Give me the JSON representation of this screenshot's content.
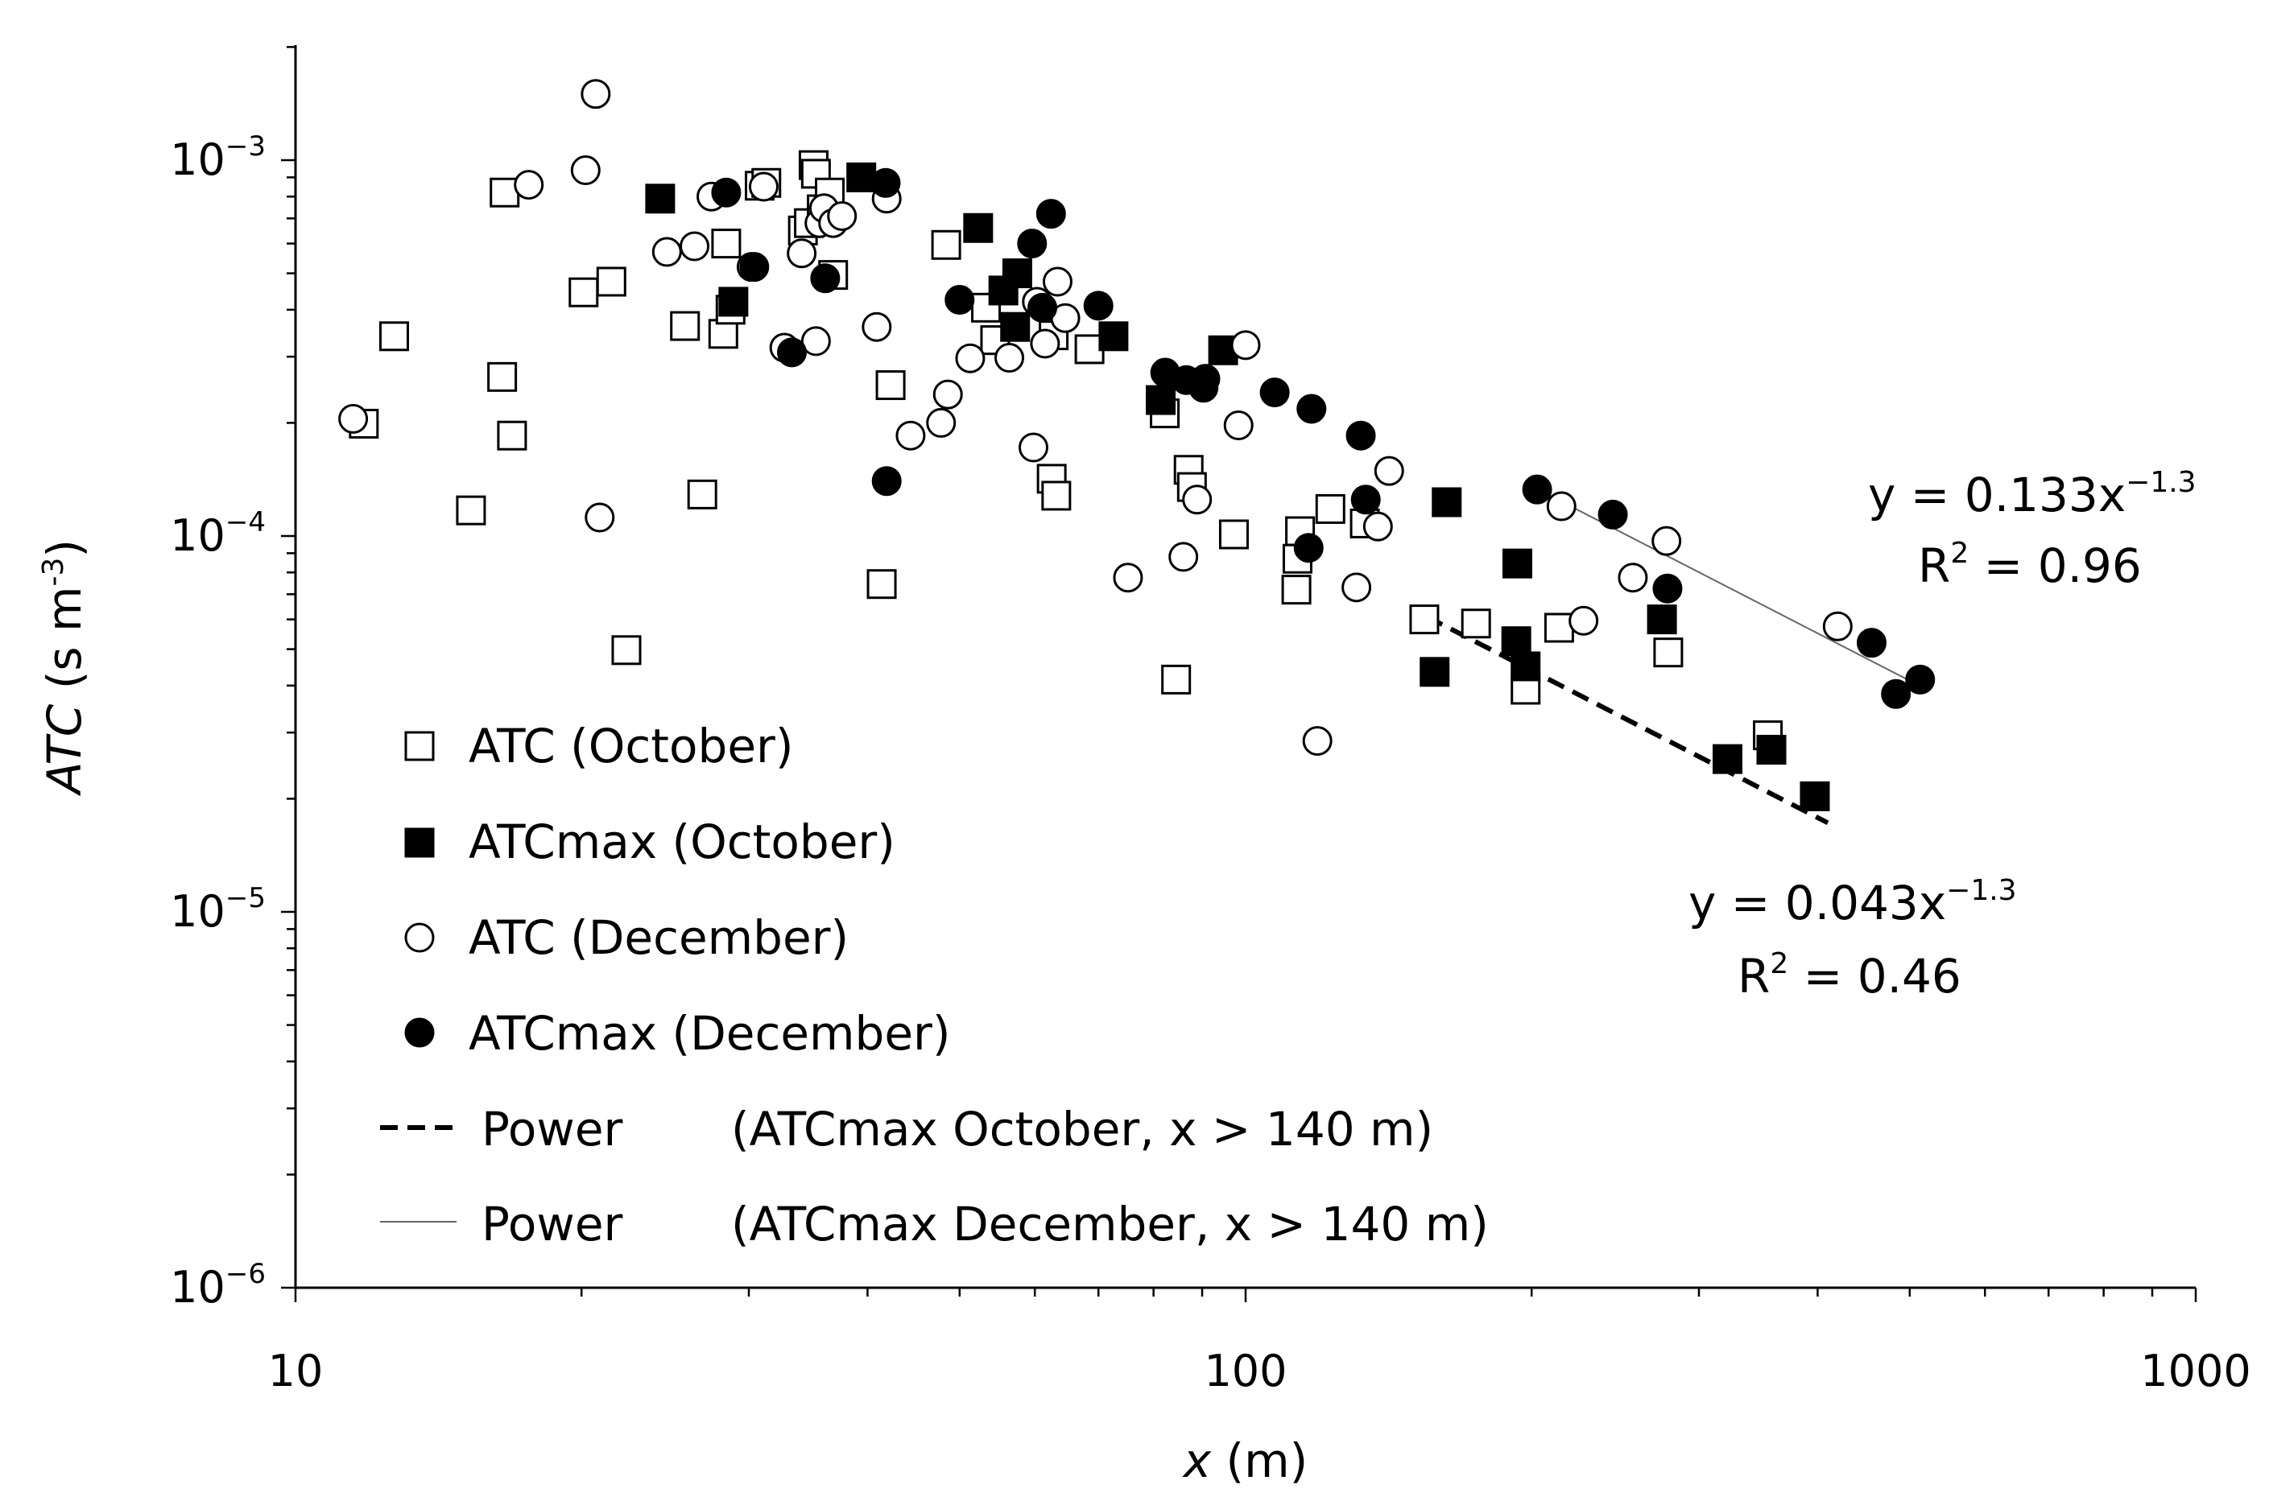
{
  "chart_data": {
    "type": "scatter",
    "x_scale": "log",
    "y_scale": "log",
    "xlim": [
      10,
      1000
    ],
    "ylim": [
      1e-06,
      0.002
    ],
    "xlabel": {
      "italic": "x",
      "rest": " (m)"
    },
    "ylabel": {
      "italic": "ATC",
      "rest": " (s m",
      "sup": "-3",
      "close": ")"
    },
    "x_ticks": [
      {
        "value": 10,
        "label": "10"
      },
      {
        "value": 100,
        "label": "100"
      },
      {
        "value": 1000,
        "label": "1000"
      }
    ],
    "y_ticks": [
      {
        "value": 1e-06,
        "base": "10",
        "exp": "−6"
      },
      {
        "value": 1e-05,
        "base": "10",
        "exp": "−5"
      },
      {
        "value": 0.0001,
        "base": "10",
        "exp": "−4"
      },
      {
        "value": 0.001,
        "base": "10",
        "exp": "−3"
      }
    ],
    "series": [
      {
        "name": "ATC (October)",
        "marker": "square-open",
        "points": [
          [
            11.8,
            0.000199
          ],
          [
            12.7,
            0.00034
          ],
          [
            15.3,
            0.000117
          ],
          [
            16.5,
            0.000265
          ],
          [
            16.6,
            0.00082
          ],
          [
            16.9,
            0.000185
          ],
          [
            20.1,
            0.000445
          ],
          [
            21.5,
            0.000475
          ],
          [
            22.3,
            4.97e-05
          ],
          [
            25.7,
            0.000362
          ],
          [
            26.8,
            0.000129
          ],
          [
            28.2,
            0.000345
          ],
          [
            28.4,
            0.0006
          ],
          [
            28.7,
            0.0004
          ],
          [
            30.8,
            0.000855
          ],
          [
            31.3,
            0.00087
          ],
          [
            34.2,
            0.00065
          ],
          [
            34.7,
            0.00068
          ],
          [
            35.1,
            0.00097
          ],
          [
            35.3,
            0.00092
          ],
          [
            35.8,
            0.00074
          ],
          [
            36.5,
            0.00082
          ],
          [
            36.8,
            0.000495
          ],
          [
            41.4,
            7.45e-05
          ],
          [
            42.3,
            0.000252
          ],
          [
            48.4,
            0.000595
          ],
          [
            53.3,
            0.000405
          ],
          [
            54.5,
            0.000332
          ],
          [
            62.5,
            0.000142
          ],
          [
            63.2,
            0.000128
          ],
          [
            62.8,
            0.000342
          ],
          [
            68.5,
            0.000314
          ],
          [
            82.2,
            0.000212
          ],
          [
            84.5,
            4.15e-05
          ],
          [
            87.1,
            0.00015
          ],
          [
            87.8,
            0.000135
          ],
          [
            97.2,
            0.000101
          ],
          [
            113.1,
            7.2e-05
          ],
          [
            113.4,
            8.7e-05
          ],
          [
            114.1,
            0.000103
          ],
          [
            122.8,
            0.000118
          ],
          [
            133.5,
            0.000108
          ],
          [
            154.2,
            6e-05
          ],
          [
            174.8,
            5.85e-05
          ],
          [
            197.1,
            3.9e-05
          ],
          [
            213.8,
            5.7e-05
          ],
          [
            278.5,
            4.9e-05
          ],
          [
            354.5,
            2.95e-05
          ]
        ]
      },
      {
        "name": "ATCmax (October)",
        "marker": "square-filled",
        "points": [
          [
            24.2,
            0.00079
          ],
          [
            28.9,
            0.00042
          ],
          [
            39.4,
            0.0009
          ],
          [
            52.3,
            0.00066
          ],
          [
            55.6,
            0.00045
          ],
          [
            57.2,
            0.00036
          ],
          [
            57.5,
            0.0005
          ],
          [
            72.6,
            0.00034
          ],
          [
            81.4,
            0.00023
          ],
          [
            94.7,
            0.000312
          ],
          [
            162.8,
            0.000123
          ],
          [
            158.1,
            4.35e-05
          ],
          [
            193.2,
            8.45e-05
          ],
          [
            192.7,
            5.25e-05
          ],
          [
            197.1,
            4.5e-05
          ],
          [
            274.3,
            6e-05
          ],
          [
            321.5,
            2.55e-05
          ],
          [
            357.6,
            2.7e-05
          ],
          [
            397.3,
            2.03e-05
          ]
        ]
      },
      {
        "name": "ATC (December)",
        "marker": "circle-open",
        "points": [
          [
            11.5,
            0.000205
          ],
          [
            17.6,
            0.00086
          ],
          [
            20.2,
            0.00094
          ],
          [
            20.7,
            0.0015
          ],
          [
            20.9,
            0.000112
          ],
          [
            24.6,
            0.00057
          ],
          [
            26.3,
            0.00059
          ],
          [
            27.4,
            0.0008
          ],
          [
            30.2,
            0.00052
          ],
          [
            31.1,
            0.00085
          ],
          [
            32.7,
            0.000317
          ],
          [
            34.1,
            0.000565
          ],
          [
            35.3,
            0.00033
          ],
          [
            35.6,
            0.00068
          ],
          [
            36.0,
            0.000745
          ],
          [
            36.8,
            0.00068
          ],
          [
            37.6,
            0.00071
          ],
          [
            40.9,
            0.00036
          ],
          [
            41.9,
            0.00079
          ],
          [
            44.4,
            0.000185
          ],
          [
            47.8,
            0.0002
          ],
          [
            48.6,
            0.000238
          ],
          [
            51.3,
            0.000297
          ],
          [
            56.4,
            0.000298
          ],
          [
            59.8,
            0.000172
          ],
          [
            60.3,
            0.00042
          ],
          [
            61.5,
            0.000325
          ],
          [
            64.6,
            0.00038
          ],
          [
            63.4,
            0.000475
          ],
          [
            75.2,
            7.75e-05
          ],
          [
            86.0,
            8.8e-05
          ],
          [
            88.9,
            0.000125
          ],
          [
            98.3,
            0.000197
          ],
          [
            100.0,
            0.000322
          ],
          [
            119.0,
            2.85e-05
          ],
          [
            130.8,
            7.3e-05
          ],
          [
            137.8,
            0.000106
          ],
          [
            141.6,
            0.000149
          ],
          [
            215.0,
            0.00012
          ],
          [
            226.8,
            5.95e-05
          ],
          [
            255.6,
            7.75e-05
          ],
          [
            277.3,
            9.7e-05
          ],
          [
            419.9,
            5.75e-05
          ]
        ]
      },
      {
        "name": "ATCmax (December)",
        "marker": "circle-filled",
        "points": [
          [
            28.4,
            0.00082
          ],
          [
            30.4,
            0.00052
          ],
          [
            33.3,
            0.000308
          ],
          [
            36.1,
            0.000485
          ],
          [
            41.8,
            0.00087
          ],
          [
            41.9,
            0.00014
          ],
          [
            50.0,
            0.000425
          ],
          [
            59.6,
            0.0006
          ],
          [
            61.1,
            0.000405
          ],
          [
            62.4,
            0.00072
          ],
          [
            70.0,
            0.00041
          ],
          [
            82.3,
            0.000272
          ],
          [
            86.6,
            0.00026
          ],
          [
            90.3,
            0.000248
          ],
          [
            90.7,
            0.000262
          ],
          [
            107.3,
            0.000241
          ],
          [
            117.3,
            0.000218
          ],
          [
            116.5,
            9.3e-05
          ],
          [
            132.2,
            0.000185
          ],
          [
            133.8,
            0.000125
          ],
          [
            202.7,
            0.000133
          ],
          [
            243.5,
            0.000114
          ],
          [
            278.0,
            7.25e-05
          ],
          [
            455.9,
            5.2e-05
          ],
          [
            483.6,
            3.8e-05
          ],
          [
            512.8,
            4.15e-05
          ]
        ]
      }
    ],
    "fits": [
      {
        "name": "Power",
        "desc": "(ATCmax October, x > 140 m)",
        "style": "dashed",
        "a": 0.043,
        "b": -1.3,
        "x_range": [
          155,
          410
        ],
        "equation": {
          "prefix": "y = 0.043x",
          "sup": "−1.3"
        },
        "r2": {
          "prefix": "R",
          "sup": "2",
          "suffix": " = 0.46"
        }
      },
      {
        "name": "Power",
        "desc": "(ATCmax December, x > 140 m)",
        "style": "solid-thin",
        "a": 0.133,
        "b": -1.3,
        "x_range": [
          198,
          505
        ],
        "equation": {
          "prefix": "y = 0.133x",
          "sup": "−1.3"
        },
        "r2": {
          "prefix": "R",
          "sup": "2",
          "suffix": " = 0.96"
        }
      }
    ],
    "legend_position": "lower-left"
  }
}
